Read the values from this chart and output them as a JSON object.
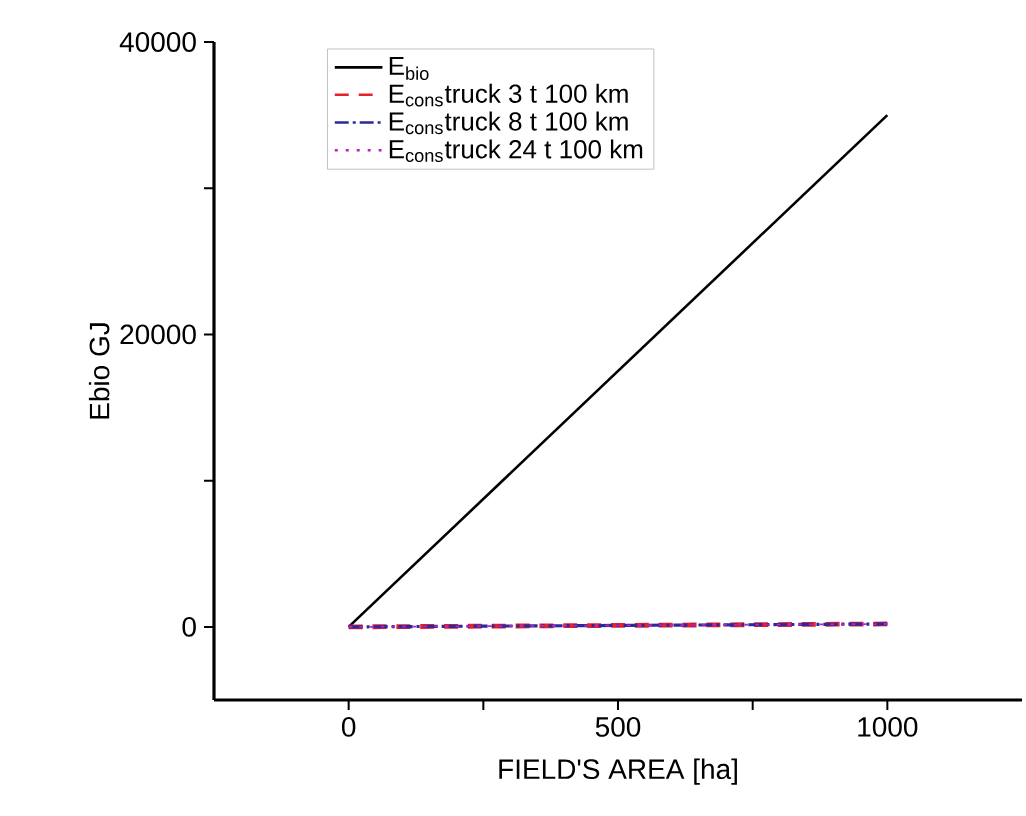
{
  "chart_data": {
    "type": "line",
    "xlabel": "FIELD'S AREA [ha]",
    "ylabel": "Ebio GJ",
    "x": [
      0,
      1000
    ],
    "series": [
      {
        "name": "E$_{bio}$",
        "color": "#000000",
        "line_style": "solid",
        "values": [
          0,
          35000
        ]
      },
      {
        "name": "E$_{cons}$truck 3 t 100 km",
        "color": "#e8202a",
        "line_style": "dashed",
        "values": [
          0,
          200
        ]
      },
      {
        "name": "E$_{cons}$truck 8 t 100 km",
        "color": "#2a2a9a",
        "line_style": "dashdot",
        "values": [
          0,
          200
        ]
      },
      {
        "name": "E$_{cons}$truck 24 t 100 km",
        "color": "#c020c0",
        "line_style": "dotted",
        "values": [
          0,
          200
        ]
      }
    ],
    "xlim": [
      -250,
      1250
    ],
    "ylim": [
      -5000,
      40000
    ],
    "xticks": [
      0,
      {
        "value": 250,
        "label": null
      },
      500,
      {
        "value": 750,
        "label": null
      },
      1000
    ],
    "yticks": [
      0,
      {
        "value": 10000,
        "label": null
      },
      20000,
      {
        "value": 30000,
        "label": null
      },
      40000
    ],
    "grid": false,
    "legend": "top left",
    "marker": "none"
  }
}
